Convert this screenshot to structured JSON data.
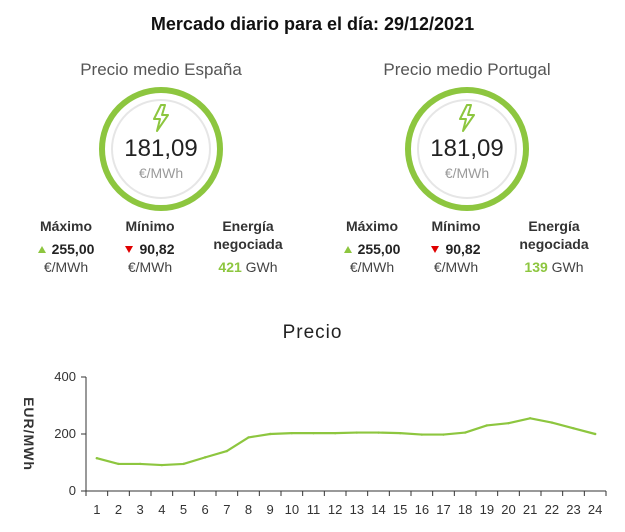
{
  "header": {
    "title": "Mercado diario para el día: 29/12/2021"
  },
  "icons": {
    "gauge": "lightning-bolt-icon"
  },
  "colors": {
    "accent": "#8dc63f",
    "down": "#e00000",
    "line": "#8dc63f"
  },
  "spain": {
    "title": "Precio medio España",
    "value": "181,09",
    "unit": "€/MWh",
    "max_label": "Máximo",
    "max_value": "255,00",
    "max_unit": "€/MWh",
    "min_label": "Mínimo",
    "min_value": "90,82",
    "min_unit": "€/MWh",
    "energy_label_1": "Energía",
    "energy_label_2": "negociada",
    "energy_value": "421",
    "energy_unit": "GWh"
  },
  "portugal": {
    "title": "Precio medio Portugal",
    "value": "181,09",
    "unit": "€/MWh",
    "max_label": "Máximo",
    "max_value": "255,00",
    "max_unit": "€/MWh",
    "min_label": "Mínimo",
    "min_value": "90,82",
    "min_unit": "€/MWh",
    "energy_label_1": "Energía",
    "energy_label_2": "negociada",
    "energy_value": "139",
    "energy_unit": "GWh"
  },
  "chart_data": {
    "type": "line",
    "title": "Precio",
    "ylabel": "EUR/MWh",
    "xlabel": "",
    "x": [
      1,
      2,
      3,
      4,
      5,
      6,
      7,
      8,
      9,
      10,
      11,
      12,
      13,
      14,
      15,
      16,
      17,
      18,
      19,
      20,
      21,
      22,
      23,
      24
    ],
    "values": [
      115,
      95,
      95,
      91,
      95,
      118,
      140,
      188,
      200,
      203,
      203,
      203,
      205,
      205,
      203,
      198,
      198,
      205,
      230,
      238,
      255,
      240,
      220,
      200
    ],
    "ylim": [
      0,
      400
    ],
    "yticks": [
      0,
      200,
      400
    ],
    "grid": false,
    "legend": "none"
  }
}
